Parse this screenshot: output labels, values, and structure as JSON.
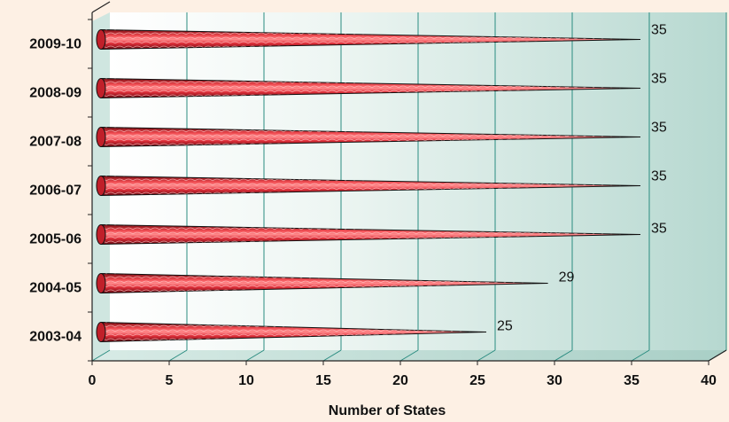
{
  "chart_data": {
    "type": "bar",
    "orientation": "horizontal",
    "bar_shape": "cone",
    "categories": [
      "2003-04",
      "2004-05",
      "2005-06",
      "2006-07",
      "2007-08",
      "2008-09",
      "2009-10"
    ],
    "values": [
      25,
      29,
      35,
      35,
      35,
      35,
      35
    ],
    "data_labels": [
      "25",
      "29",
      "35",
      "35",
      "35",
      "35",
      "35"
    ],
    "xlabel": "Number of States",
    "xlim": [
      0,
      40
    ],
    "x_ticks": [
      0,
      5,
      10,
      15,
      20,
      25,
      30,
      35,
      40
    ],
    "grid": true,
    "colors": {
      "bar": "#e0303a",
      "bar_dark": "#8a0d14",
      "bar_outline": "#111111",
      "wall_start": "#ffffff",
      "wall_end": "#b9d9d2",
      "gridline": "#2a8c80",
      "page_background": "#fdf0e4"
    }
  }
}
